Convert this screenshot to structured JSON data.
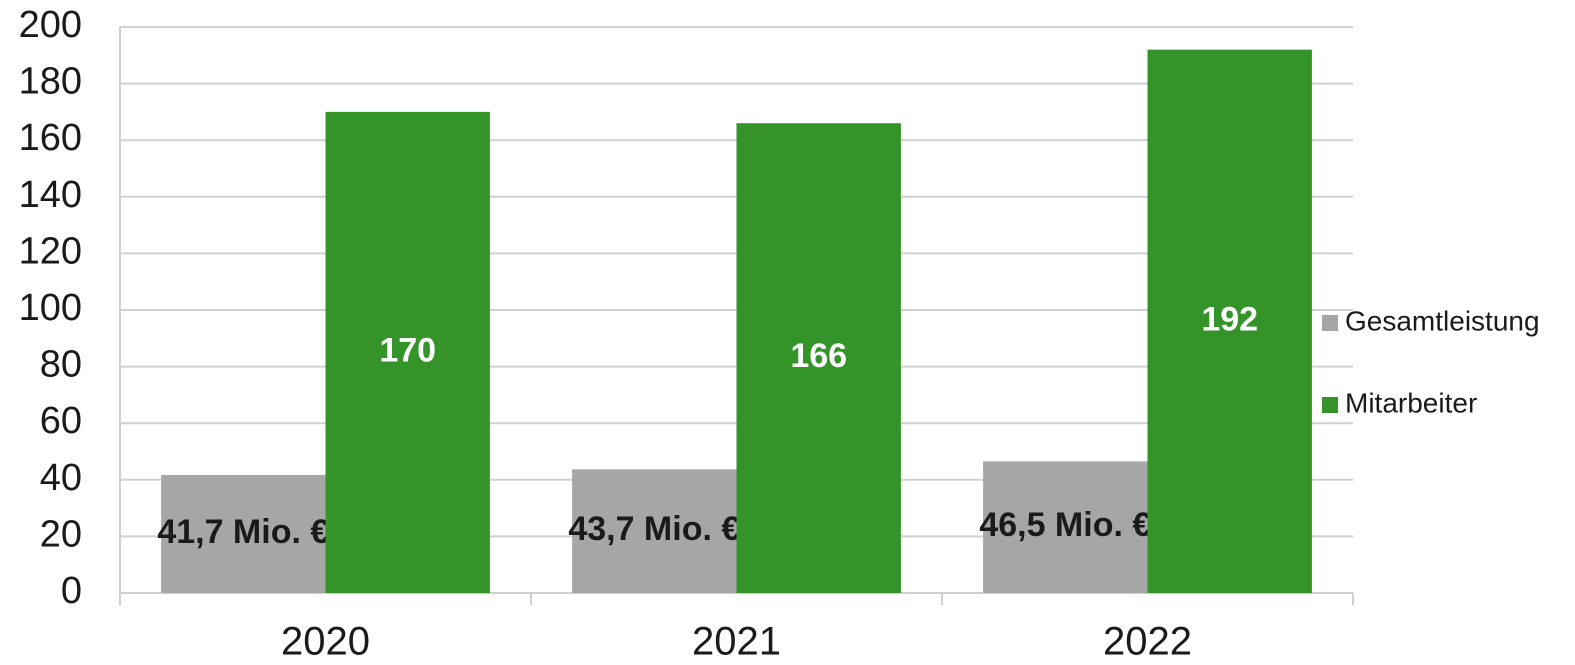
{
  "chart_data": {
    "type": "bar",
    "categories": [
      "2020",
      "2021",
      "2022"
    ],
    "series": [
      {
        "name": "Gesamtleistung",
        "color": "#a6a6a6",
        "values": [
          41.7,
          43.7,
          46.5
        ],
        "value_labels": [
          "41,7 Mio. €",
          "43,7 Mio. €",
          "46,5 Mio. €"
        ]
      },
      {
        "name": "Mitarbeiter",
        "color": "#359429",
        "values": [
          170,
          166,
          192
        ]
      }
    ],
    "ylim": [
      0,
      200
    ],
    "yticks": [
      0,
      20,
      40,
      60,
      80,
      100,
      120,
      140,
      160,
      180,
      200
    ],
    "grid": true,
    "legend": "right"
  }
}
